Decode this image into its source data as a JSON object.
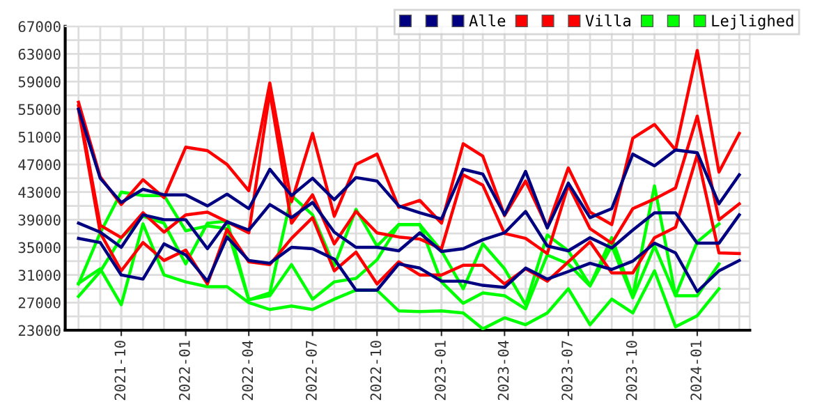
{
  "chart_data": {
    "type": "line",
    "x": [
      "2021-08",
      "2021-09",
      "2021-10",
      "2021-11",
      "2021-12",
      "2022-01",
      "2022-02",
      "2022-03",
      "2022-04",
      "2022-05",
      "2022-06",
      "2022-07",
      "2022-08",
      "2022-09",
      "2022-10",
      "2022-11",
      "2022-12",
      "2023-01",
      "2023-02",
      "2023-03",
      "2023-04",
      "2023-05",
      "2023-06",
      "2023-07",
      "2023-08",
      "2023-09",
      "2023-10",
      "2023-11",
      "2023-12",
      "2024-01",
      "2024-02",
      "2024-03"
    ],
    "series": [
      {
        "color": "#000080",
        "values": [
          55000,
          45000,
          41500,
          43400,
          42600,
          42600,
          41000,
          42700,
          40600,
          46300,
          42500,
          45000,
          41900,
          45100,
          44600,
          41000,
          40000,
          39100,
          46300,
          45600,
          39700,
          46000,
          37800,
          44300,
          39300,
          40600,
          48500,
          46800,
          49100,
          48700,
          41300,
          45500
        ]
      },
      {
        "color": "#000080",
        "values": [
          38500,
          37200,
          35000,
          39700,
          39000,
          39000,
          34800,
          38700,
          37500,
          41200,
          39300,
          41500,
          37200,
          35000,
          35000,
          34500,
          37100,
          34400,
          34800,
          36100,
          37100,
          40200,
          35200,
          34500,
          36400,
          34900,
          37500,
          40000,
          40000,
          35600,
          35600,
          39700
        ]
      },
      {
        "name": "Alle",
        "color": "#000080",
        "values": [
          36300,
          35700,
          31000,
          30400,
          35500,
          33900,
          30100,
          36500,
          33100,
          32700,
          35000,
          34800,
          33300,
          28800,
          28800,
          32600,
          32000,
          30100,
          30100,
          29500,
          29200,
          32000,
          30400,
          31500,
          32700,
          31800,
          33000,
          35600,
          34200,
          28600,
          31600,
          33100
        ]
      },
      {
        "color": "#ff0000",
        "values": [
          56000,
          45200,
          41200,
          44800,
          42200,
          49500,
          49000,
          47000,
          43200,
          58800,
          41600,
          51500,
          39500,
          47000,
          48500,
          40800,
          41800,
          38500,
          50000,
          48200,
          39600,
          44600,
          37900,
          46500,
          40100,
          38300,
          50800,
          52800,
          49100,
          63500,
          45900,
          51500
        ]
      },
      {
        "color": "#ff0000",
        "values": [
          55500,
          38200,
          36400,
          40000,
          37200,
          39700,
          40100,
          38700,
          37100,
          57500,
          38500,
          42600,
          35500,
          40200,
          37100,
          36500,
          36200,
          34800,
          45500,
          44000,
          37000,
          36300,
          34100,
          44000,
          37700,
          35600,
          40600,
          42000,
          43600,
          54000,
          39000,
          41300
        ]
      },
      {
        "name": "Villa",
        "color": "#ff0000",
        "values": [
          55000,
          37100,
          31600,
          35700,
          33100,
          34600,
          29700,
          37600,
          32900,
          32500,
          36300,
          39300,
          31600,
          34300,
          29700,
          32900,
          31000,
          31000,
          32400,
          32400,
          29700,
          31900,
          30100,
          32900,
          35800,
          31300,
          31300,
          36400,
          37900,
          48400,
          34200,
          34100
        ]
      },
      {
        "color": "#00ff00",
        "values": [
          29700,
          37100,
          43000,
          42500,
          42500,
          37400,
          38100,
          37700,
          27400,
          28400,
          42500,
          39700,
          32300,
          40500,
          35200,
          38300,
          38300,
          34500,
          29000,
          35500,
          31900,
          26700,
          36800,
          34500,
          29500,
          36400,
          28000,
          43900,
          28000,
          35800,
          38400,
          null
        ]
      },
      {
        "color": "#00ff00",
        "values": [
          27900,
          31500,
          36400,
          39500,
          38500,
          32600,
          38500,
          38800,
          27400,
          28000,
          32500,
          27500,
          30000,
          30500,
          33200,
          38300,
          38300,
          30000,
          26900,
          28400,
          28000,
          26100,
          33900,
          32600,
          29400,
          35200,
          27700,
          35200,
          28000,
          28000,
          32600,
          null
        ]
      },
      {
        "name": "Lejlighed",
        "color": "#00ff00",
        "values": [
          29800,
          31900,
          26700,
          38400,
          31000,
          30000,
          29300,
          29300,
          27000,
          26000,
          26500,
          26000,
          27500,
          28800,
          28800,
          25800,
          25700,
          25800,
          25500,
          23200,
          24800,
          23800,
          25500,
          29000,
          23800,
          27500,
          25500,
          31600,
          23500,
          25100,
          29000,
          null
        ]
      }
    ],
    "xlim": [
      "2021-07-13",
      "2024-03-16"
    ],
    "xticks": [
      "2021-10",
      "2022-01",
      "2022-04",
      "2022-07",
      "2022-10",
      "2023-01",
      "2023-04",
      "2023-07",
      "2023-10",
      "2024-01"
    ],
    "ylim": [
      23000,
      67000
    ],
    "yticks": [
      23000,
      27000,
      31000,
      35000,
      39000,
      43000,
      47000,
      51000,
      55000,
      59000,
      63000,
      67000
    ],
    "grid": true,
    "legend": "top right",
    "marker": "none",
    "line_style": "solid"
  }
}
